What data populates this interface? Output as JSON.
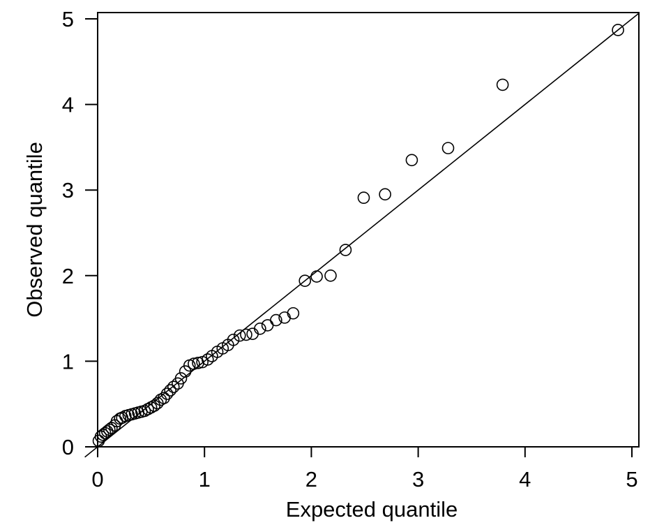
{
  "chart_data": {
    "type": "scatter",
    "title": "",
    "xlabel": "Expected quantile",
    "ylabel": "Observed quantile",
    "xlim": [
      0,
      5
    ],
    "ylim": [
      0,
      5
    ],
    "xticks": [
      "0",
      "1",
      "2",
      "3",
      "4",
      "5"
    ],
    "yticks": [
      "0",
      "1",
      "2",
      "3",
      "4",
      "5"
    ],
    "grid": false,
    "reference_line": {
      "intercept": 0,
      "slope": 1
    },
    "marker": "open-circle",
    "color": "#000000",
    "points": [
      [
        4.87,
        4.87
      ],
      [
        3.79,
        4.23
      ],
      [
        3.28,
        3.49
      ],
      [
        2.94,
        3.35
      ],
      [
        2.69,
        2.95
      ],
      [
        2.49,
        2.91
      ],
      [
        2.32,
        2.3
      ],
      [
        2.18,
        2.0
      ],
      [
        2.05,
        1.99
      ],
      [
        1.94,
        1.94
      ],
      [
        1.83,
        1.56
      ],
      [
        1.75,
        1.51
      ],
      [
        1.67,
        1.48
      ],
      [
        1.59,
        1.42
      ],
      [
        1.52,
        1.38
      ],
      [
        1.45,
        1.32
      ],
      [
        1.39,
        1.31
      ],
      [
        1.33,
        1.3
      ],
      [
        1.27,
        1.25
      ],
      [
        1.22,
        1.19
      ],
      [
        1.17,
        1.15
      ],
      [
        1.12,
        1.11
      ],
      [
        1.07,
        1.06
      ],
      [
        1.03,
        1.02
      ],
      [
        0.98,
        0.99
      ],
      [
        0.94,
        0.98
      ],
      [
        0.9,
        0.97
      ],
      [
        0.86,
        0.95
      ],
      [
        0.82,
        0.88
      ],
      [
        0.78,
        0.8
      ],
      [
        0.75,
        0.74
      ],
      [
        0.71,
        0.7
      ],
      [
        0.68,
        0.66
      ],
      [
        0.65,
        0.62
      ],
      [
        0.62,
        0.57
      ],
      [
        0.59,
        0.55
      ],
      [
        0.56,
        0.51
      ],
      [
        0.53,
        0.48
      ],
      [
        0.5,
        0.46
      ],
      [
        0.47,
        0.44
      ],
      [
        0.44,
        0.42
      ],
      [
        0.41,
        0.41
      ],
      [
        0.38,
        0.4
      ],
      [
        0.35,
        0.39
      ],
      [
        0.32,
        0.38
      ],
      [
        0.29,
        0.37
      ],
      [
        0.26,
        0.36
      ],
      [
        0.23,
        0.34
      ],
      [
        0.21,
        0.33
      ],
      [
        0.18,
        0.3
      ],
      [
        0.16,
        0.25
      ],
      [
        0.13,
        0.22
      ],
      [
        0.11,
        0.2
      ],
      [
        0.09,
        0.18
      ],
      [
        0.07,
        0.16
      ],
      [
        0.05,
        0.14
      ],
      [
        0.03,
        0.12
      ],
      [
        0.01,
        0.07
      ]
    ]
  }
}
